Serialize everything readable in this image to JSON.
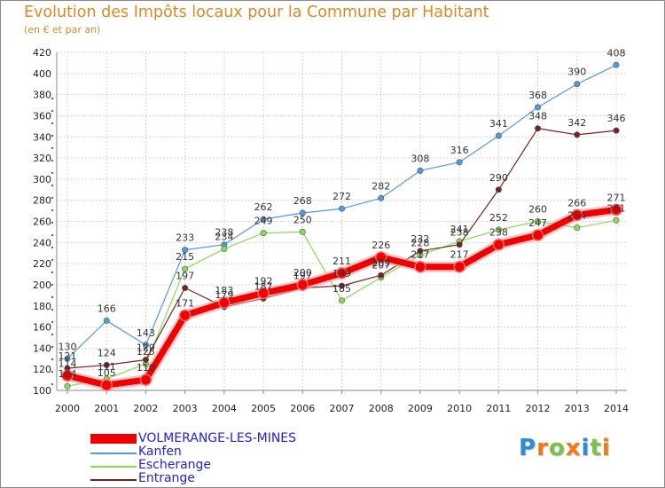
{
  "header": {
    "title": "Evolution des Impôts locaux pour la Commune par Habitant",
    "subtitle": "(en € et par an)"
  },
  "chart_data": {
    "type": "line",
    "title": "Evolution des Impôts locaux pour la Commune par Habitant",
    "subtitle": "(en € et par an)",
    "xlabel": "",
    "ylabel": "",
    "x": [
      "2000",
      "2001",
      "2002",
      "2003",
      "2004",
      "2005",
      "2006",
      "2007",
      "2008",
      "2009",
      "2010",
      "2011",
      "2012",
      "2013",
      "2014"
    ],
    "ylim": [
      100,
      420
    ],
    "yticks": [
      "100",
      "120",
      "140",
      "160",
      "180",
      "200",
      "220",
      "240",
      "260",
      "280",
      "300",
      "320",
      "340",
      "360",
      "380",
      "400",
      "420"
    ],
    "grid": true,
    "legend_position": "bottom-left",
    "series": [
      {
        "name": "VOLMERANGE-LES-MINES",
        "color": "#ee0000",
        "values": [
          114,
          105,
          110,
          171,
          183,
          192,
          200,
          211,
          226,
          217,
          217,
          238,
          247,
          266,
          271
        ],
        "labels": [
          "114",
          "105",
          "110",
          "171",
          "183",
          "192",
          "200",
          "211",
          "226",
          "217",
          "217",
          "238",
          "247",
          "266",
          "271"
        ]
      },
      {
        "name": "Kanfen",
        "color": "#5599dd",
        "values": [
          130,
          166,
          143,
          233,
          238,
          262,
          268,
          272,
          282,
          308,
          316,
          341,
          368,
          390,
          408
        ],
        "labels": [
          "130",
          "166",
          "143",
          "233",
          "238",
          "262",
          "268",
          "272",
          "282",
          "308",
          "316",
          "341",
          "368",
          "390",
          "408"
        ]
      },
      {
        "name": "Escherange",
        "color": "#88dd55",
        "values": [
          104,
          111,
          125,
          215,
          234,
          249,
          250,
          185,
          207,
          228,
          241,
          252,
          260,
          254,
          261
        ],
        "labels": [
          "104",
          "111",
          "125",
          "215",
          "234",
          "249",
          "250",
          "185",
          "207",
          "228",
          "241",
          "252",
          "260",
          "254",
          "261"
        ]
      },
      {
        "name": "Entrange",
        "color": "#772222",
        "values": [
          121,
          124,
          129,
          197,
          179,
          187,
          197,
          199,
          209,
          232,
          238,
          290,
          348,
          342,
          346
        ],
        "labels": [
          "121",
          "124",
          "129",
          "197",
          "179",
          "187",
          "197",
          "199",
          "209",
          "232",
          "238",
          "290",
          "348",
          "342",
          "346"
        ]
      }
    ]
  },
  "logo": {
    "letters": [
      "P",
      "r",
      "o",
      "x",
      "i",
      "t",
      "i"
    ],
    "colors": [
      "#2a8fd6",
      "#f07a1a",
      "#7cc242",
      "#f07a1a",
      "#2a8fd6",
      "#7cc242",
      "#f07a1a"
    ]
  }
}
